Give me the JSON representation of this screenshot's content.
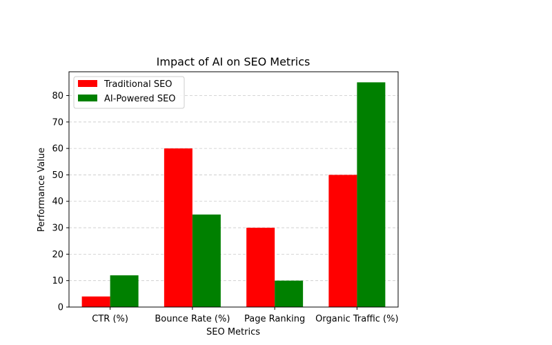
{
  "chart_data": {
    "type": "bar",
    "title": "Impact of AI on SEO Metrics",
    "xlabel": "SEO Metrics",
    "ylabel": "Performance Value",
    "categories": [
      "CTR (%)",
      "Bounce Rate (%)",
      "Page Ranking",
      "Organic Traffic (%)"
    ],
    "series": [
      {
        "name": "Traditional SEO",
        "values": [
          4,
          60,
          30,
          50
        ],
        "color": "#ff0000"
      },
      {
        "name": "AI-Powered SEO",
        "values": [
          12,
          35,
          10,
          85
        ],
        "color": "#008000"
      }
    ],
    "ylim": [
      0,
      89
    ],
    "yticks": [
      0,
      10,
      20,
      30,
      40,
      50,
      60,
      70,
      80
    ],
    "grid": true,
    "legend_position": "top-left"
  }
}
